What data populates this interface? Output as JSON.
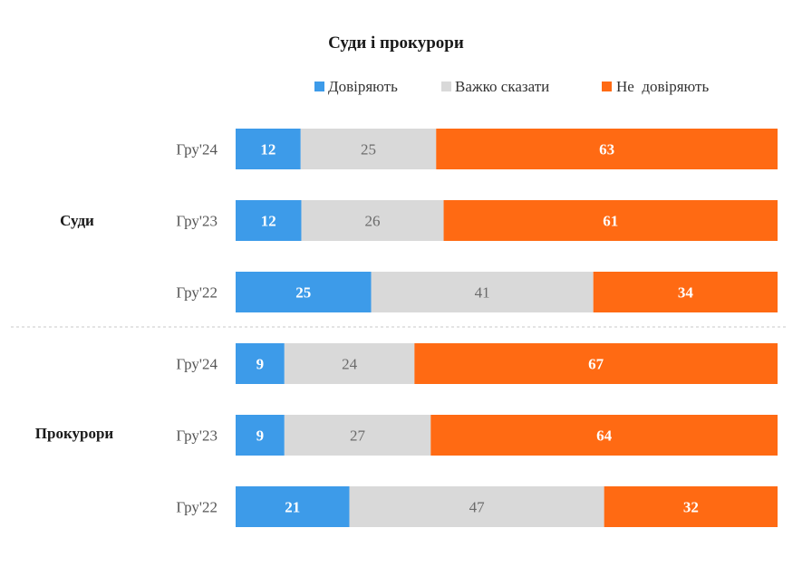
{
  "chart_data": {
    "type": "bar",
    "orientation": "horizontal",
    "stacked": true,
    "title": "Суди і прокурори",
    "legend_position": "top",
    "series": [
      {
        "name": "Довіряють",
        "color": "#3d9be9"
      },
      {
        "name": "Важко сказати",
        "color": "#d9d9d9"
      },
      {
        "name": "Не  довіряють",
        "color": "#ff6a13"
      }
    ],
    "groups": [
      {
        "label": "Суди",
        "rows": [
          {
            "label": "Гру'24",
            "values": [
              12,
              25,
              63
            ]
          },
          {
            "label": "Гру'23",
            "values": [
              12,
              26,
              61
            ]
          },
          {
            "label": "Гру'22",
            "values": [
              25,
              41,
              34
            ]
          }
        ]
      },
      {
        "label": "Прокурори",
        "rows": [
          {
            "label": "Гру'24",
            "values": [
              9,
              24,
              67
            ]
          },
          {
            "label": "Гру'23",
            "values": [
              9,
              27,
              64
            ]
          },
          {
            "label": "Гру'22",
            "values": [
              21,
              47,
              32
            ]
          }
        ]
      }
    ],
    "grid": false
  }
}
